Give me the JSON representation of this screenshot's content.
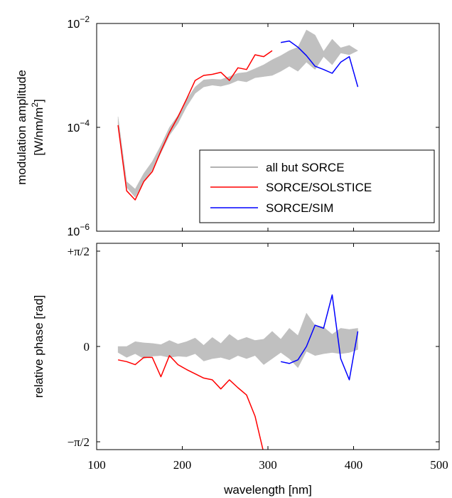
{
  "chart_data": [
    {
      "type": "area",
      "panel": "top",
      "ylabel_line1": "modulation amplitude",
      "ylabel_line2": "[W/nm/m",
      "ylabel_sup": "2",
      "ylabel_close": "]",
      "yscale": "log",
      "xlim": [
        100,
        500
      ],
      "ylim": [
        1e-06,
        0.01
      ],
      "xticks": [
        100,
        200,
        300,
        400,
        500
      ],
      "yticks": [
        {
          "value": 1e-06,
          "base": "10",
          "exp": "−6"
        },
        {
          "value": 0.0001,
          "base": "10",
          "exp": "−4"
        },
        {
          "value": 0.01,
          "base": "10",
          "exp": "−2"
        }
      ],
      "legend": {
        "position": "lower-right",
        "entries": [
          {
            "label": "all but SORCE",
            "color": "#999999"
          },
          {
            "label": "SORCE/SOLSTICE",
            "color": "#ff0000"
          },
          {
            "label": "SORCE/SIM",
            "color": "#0000ff"
          }
        ]
      },
      "series": [
        {
          "name": "all but SORCE",
          "kind": "band",
          "color": "#c0c0c0",
          "x": [
            125,
            135,
            145,
            155,
            165,
            175,
            185,
            195,
            205,
            215,
            225,
            235,
            245,
            255,
            265,
            275,
            285,
            295,
            305,
            315,
            325,
            335,
            345,
            355,
            365,
            375,
            385,
            395,
            405
          ],
          "lower": [
            0.00011,
            7e-06,
            4.5e-06,
            9e-06,
            1.5e-05,
            3.2e-05,
            7e-05,
            0.00012,
            0.00025,
            0.00045,
            0.0006,
            0.00065,
            0.00062,
            0.00068,
            0.0008,
            0.00075,
            0.0009,
            0.00095,
            0.001,
            0.0012,
            0.0015,
            0.0012,
            0.0018,
            0.0013,
            0.0023,
            0.0016,
            0.0027,
            0.0025,
            0.003
          ],
          "upper": [
            0.00016,
            9e-06,
            6.5e-06,
            1.3e-05,
            2.2e-05,
            4.5e-05,
            0.0001,
            0.00017,
            0.00034,
            0.0006,
            0.00082,
            0.00085,
            0.00083,
            0.00095,
            0.0011,
            0.00115,
            0.00135,
            0.0016,
            0.002,
            0.0024,
            0.003,
            0.0035,
            0.0075,
            0.006,
            0.0029,
            0.005,
            0.0034,
            0.0038,
            0.003
          ]
        },
        {
          "name": "SORCE/SOLSTICE",
          "kind": "line",
          "color": "#ff0000",
          "x": [
            125,
            135,
            145,
            155,
            165,
            175,
            185,
            195,
            205,
            215,
            225,
            235,
            245,
            255,
            265,
            275,
            285,
            295,
            305
          ],
          "y": [
            0.00011,
            6e-06,
            4e-06,
            9e-06,
            1.4e-05,
            3.5e-05,
            8e-05,
            0.00016,
            0.00035,
            0.0008,
            0.001,
            0.00105,
            0.00115,
            0.0008,
            0.0014,
            0.0013,
            0.0025,
            0.0023,
            0.003
          ]
        },
        {
          "name": "SORCE/SIM",
          "kind": "line",
          "color": "#0000ff",
          "x": [
            315,
            325,
            335,
            345,
            355,
            365,
            375,
            385,
            395,
            405
          ],
          "y": [
            0.0043,
            0.0046,
            0.0035,
            0.0024,
            0.0015,
            0.0013,
            0.0011,
            0.0018,
            0.0023,
            0.0006
          ]
        }
      ]
    },
    {
      "type": "area",
      "panel": "bottom",
      "ylabel": "relative phase [rad]",
      "xlabel": "wavelength [nm]",
      "xlim": [
        100,
        500
      ],
      "ylim": [
        -1.7,
        1.7
      ],
      "xticks": [
        100,
        200,
        300,
        400,
        500
      ],
      "yticks": [
        {
          "value": 1.5708,
          "label": "+π/2"
        },
        {
          "value": 0,
          "label": "0"
        },
        {
          "value": -1.5708,
          "label": "−π/2"
        }
      ],
      "series": [
        {
          "name": "all but SORCE",
          "kind": "band",
          "color": "#c0c0c0",
          "x": [
            125,
            135,
            145,
            155,
            165,
            175,
            185,
            195,
            205,
            215,
            225,
            235,
            245,
            255,
            265,
            275,
            285,
            295,
            305,
            315,
            325,
            335,
            345,
            355,
            365,
            375,
            385,
            395,
            405
          ],
          "lower": [
            -0.1,
            -0.18,
            -0.12,
            -0.2,
            -0.16,
            -0.15,
            -0.18,
            -0.16,
            -0.17,
            -0.12,
            -0.24,
            -0.2,
            -0.18,
            -0.22,
            -0.15,
            -0.2,
            -0.15,
            -0.3,
            -0.2,
            -0.1,
            -0.2,
            -0.35,
            -0.08,
            -0.15,
            -0.12,
            -0.1,
            -0.12,
            -0.1,
            -0.05
          ],
          "upper": [
            0.0,
            0.0,
            0.08,
            0.06,
            0.05,
            0.03,
            0.1,
            0.04,
            0.08,
            0.14,
            0.02,
            0.15,
            0.05,
            0.2,
            0.1,
            0.15,
            0.1,
            0.12,
            0.25,
            0.12,
            0.3,
            0.18,
            0.55,
            0.35,
            0.32,
            0.2,
            0.3,
            0.28,
            0.3
          ]
        },
        {
          "name": "SORCE/SOLSTICE",
          "kind": "line",
          "color": "#ff0000",
          "x": [
            125,
            135,
            145,
            155,
            165,
            175,
            185,
            195,
            205,
            215,
            225,
            235,
            245,
            255,
            265,
            275,
            285,
            295
          ],
          "y": [
            -0.22,
            -0.25,
            -0.3,
            -0.18,
            -0.18,
            -0.5,
            -0.15,
            -0.3,
            -0.38,
            -0.45,
            -0.52,
            -0.55,
            -0.7,
            -0.55,
            -0.68,
            -0.8,
            -1.15,
            -1.75
          ]
        },
        {
          "name": "SORCE/SIM",
          "kind": "line",
          "color": "#0000ff",
          "x": [
            315,
            325,
            335,
            345,
            355,
            365,
            375,
            385,
            395,
            405
          ],
          "y": [
            -0.25,
            -0.28,
            -0.22,
            0.0,
            0.35,
            0.3,
            0.85,
            -0.2,
            -0.55,
            0.25
          ]
        }
      ]
    }
  ]
}
